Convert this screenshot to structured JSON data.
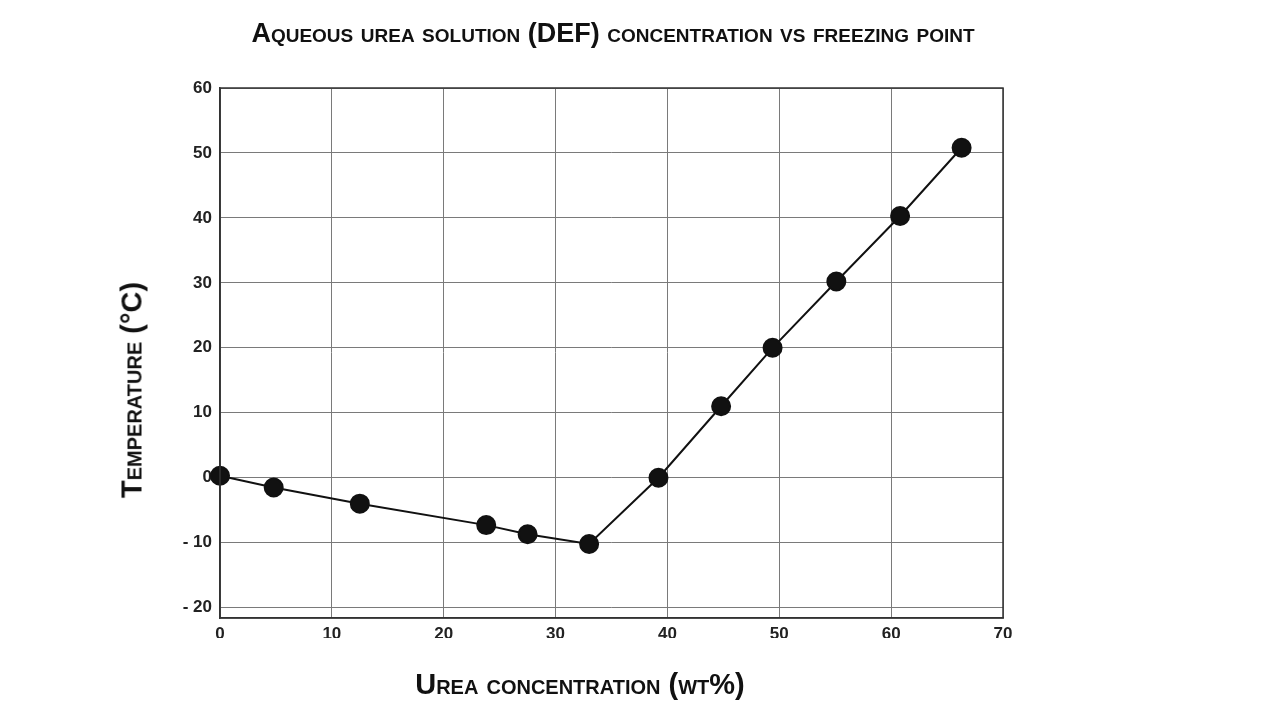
{
  "chart_data": {
    "type": "line",
    "title": "Aqueous urea solution (DEF) concentration vs freezing point",
    "x_label": "Urea concentration (wt%)",
    "y_label": "Temperature (°C)",
    "x": [
      0,
      4.8,
      12.5,
      23.8,
      27.5,
      33,
      39.2,
      44.8,
      49.4,
      55.1,
      60.8,
      66.3
    ],
    "values": [
      0.3,
      -1.5,
      -4,
      -7.3,
      -8.7,
      -10.2,
      0,
      11,
      20,
      30.2,
      40.3,
      50.8
    ],
    "color": "#111111",
    "marker": "circle",
    "line_style": "solid",
    "xlim": [
      0,
      70
    ],
    "xticks": [
      0,
      10,
      20,
      30,
      40,
      50,
      60,
      70
    ],
    "ylim": [
      -21.6,
      60
    ],
    "yticks": [
      {
        "value": -20,
        "label": "- 20"
      },
      {
        "value": -10,
        "label": "- 10"
      },
      0,
      10,
      20,
      30,
      40,
      50,
      60
    ],
    "grid": true
  }
}
